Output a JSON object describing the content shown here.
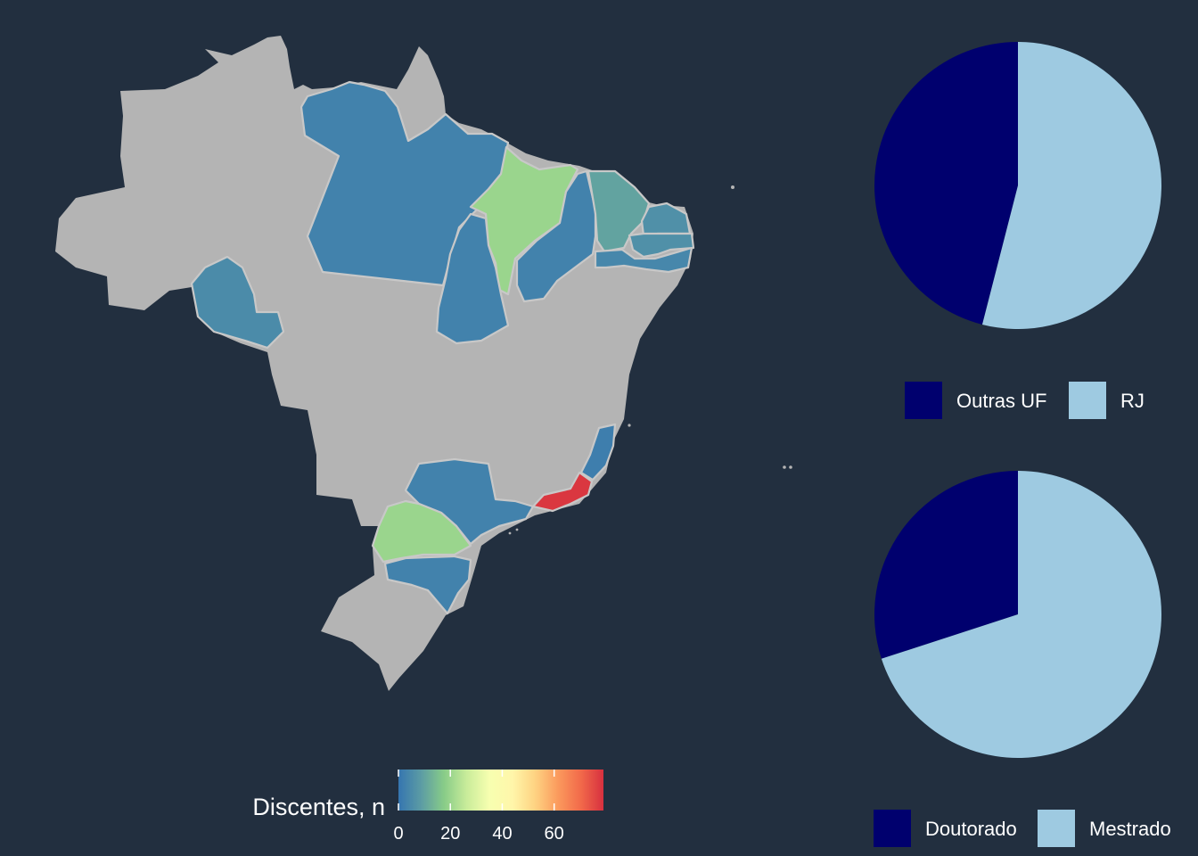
{
  "colors": {
    "background": "#222f3f",
    "no_data": "#b4b4b4",
    "state_border": "#c8c8c8",
    "pie_dark": "#00006e",
    "pie_light": "#9ecae1"
  },
  "chart_data": [
    {
      "type": "choropleth-map",
      "title": "",
      "legend": {
        "title": "Discentes, n",
        "ticks": [
          "0",
          "20",
          "40",
          "60"
        ],
        "range": [
          0,
          79
        ],
        "palette": [
          "#3575b0",
          "#5c9ca4",
          "#88cc88",
          "#c9ec9a",
          "#f7ffb0",
          "#fff6aa",
          "#fed382",
          "#fb9a5d",
          "#f26a4a",
          "#d7303f"
        ]
      },
      "regions": [
        {
          "name": "PA",
          "value": 3
        },
        {
          "name": "TO",
          "value": 3
        },
        {
          "name": "PI",
          "value": 3
        },
        {
          "name": "MA",
          "value": 20
        },
        {
          "name": "CE",
          "value": 10
        },
        {
          "name": "RN",
          "value": 6
        },
        {
          "name": "PB",
          "value": 6
        },
        {
          "name": "PE",
          "value": 4
        },
        {
          "name": "RO",
          "value": 5
        },
        {
          "name": "SP",
          "value": 3
        },
        {
          "name": "ES",
          "value": 2
        },
        {
          "name": "RJ",
          "value": 78
        },
        {
          "name": "PR",
          "value": 20
        },
        {
          "name": "SC",
          "value": 3
        }
      ]
    },
    {
      "type": "pie",
      "title": "",
      "categories": [
        "Outras UF",
        "RJ"
      ],
      "values": [
        46,
        54
      ]
    },
    {
      "type": "pie",
      "title": "",
      "categories": [
        "Doutorado",
        "Mestrado"
      ],
      "values": [
        30,
        70
      ]
    }
  ]
}
